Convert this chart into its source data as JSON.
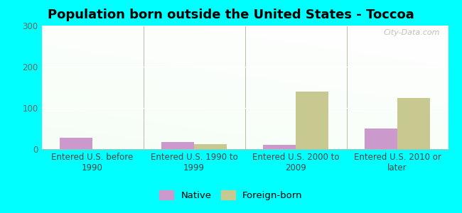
{
  "title": "Population born outside the United States - Toccoa",
  "categories": [
    "Entered U.S. before\n1990",
    "Entered U.S. 1990 to\n1999",
    "Entered U.S. 2000 to\n2009",
    "Entered U.S. 2010 or\nlater"
  ],
  "native_values": [
    27,
    18,
    10,
    50
  ],
  "foreign_values": [
    0,
    12,
    140,
    125
  ],
  "native_color": "#cc99cc",
  "foreign_color": "#c8c891",
  "ylim": [
    0,
    300
  ],
  "yticks": [
    0,
    100,
    200,
    300
  ],
  "background_color": "#00ffff",
  "watermark": "City-Data.com",
  "bar_width": 0.32,
  "title_fontsize": 13,
  "tick_fontsize": 8.5,
  "legend_fontsize": 9.5
}
